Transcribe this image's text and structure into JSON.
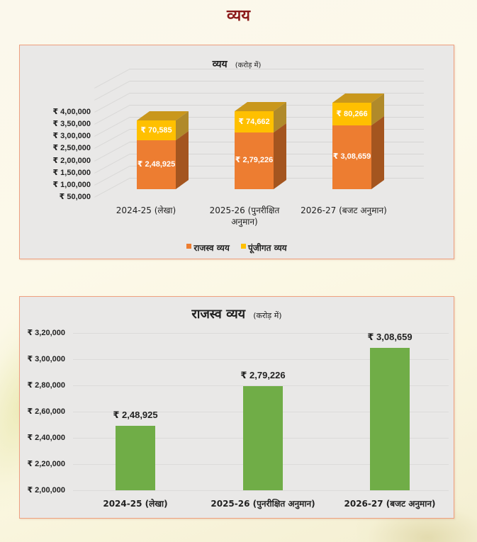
{
  "page": {
    "title": "व्यय"
  },
  "colors": {
    "title": "#8b1a1a",
    "revenue_expenditure": "#ed7d31",
    "capital_expenditure": "#ffc000",
    "green_bar": "#70ad47",
    "panel_border": "#eea080",
    "panel_bg": "#e9e8e7"
  },
  "chart1": {
    "title_main": "व्यय",
    "title_unit": "(करोड़ में)",
    "y_ticks": [
      "₹ 4,00,000",
      "₹ 3,50,000",
      "₹ 3,00,000",
      "₹ 2,50,000",
      "₹ 2,00,000",
      "₹ 1,50,000",
      "₹ 1,00,000",
      "₹ 50,000"
    ],
    "categories": [
      {
        "line1": "2024-25 (लेखा)",
        "line2": ""
      },
      {
        "line1": "2025-26 (पुनरीक्षित",
        "line2": "अनुमान)"
      },
      {
        "line1": "2026-27 (बजट अनुमान)",
        "line2": ""
      }
    ],
    "bars": [
      {
        "revenue_label": "₹ 2,48,925",
        "capital_label": "₹ 70,585"
      },
      {
        "revenue_label": "₹ 2,79,226",
        "capital_label": "₹ 74,662"
      },
      {
        "revenue_label": "₹ 3,08,659",
        "capital_label": "₹ 80,266"
      }
    ],
    "legend": [
      {
        "label": "राजस्व व्यय",
        "color": "#ed7d31"
      },
      {
        "label": "पूंजीगत व्यय",
        "color": "#ffc000"
      }
    ]
  },
  "chart2": {
    "title_main": "राजस्व व्यय",
    "title_unit": "(करोड़ में)",
    "y_ticks": [
      "₹ 3,20,000",
      "₹ 3,00,000",
      "₹ 2,80,000",
      "₹ 2,60,000",
      "₹ 2,40,000",
      "₹ 2,20,000",
      "₹ 2,00,000"
    ],
    "categories": [
      "2024-25 (लेखा)",
      "2025-26 (पुनरीक्षित अनुमान)",
      "2026-27 (बजट अनुमान)"
    ],
    "bar_labels": [
      "₹ 2,48,925",
      "₹ 2,79,226",
      "₹ 3,08,659"
    ]
  },
  "chart_data": [
    {
      "type": "bar",
      "subtype": "stacked-3d",
      "title": "व्यय (करोड़ में)",
      "xlabel": "",
      "ylabel": "",
      "categories": [
        "2024-25 (लेखा)",
        "2025-26 (पुनरीक्षित अनुमान)",
        "2026-27 (बजट अनुमान)"
      ],
      "series": [
        {
          "name": "राजस्व व्यय",
          "color": "#ed7d31",
          "values": [
            248925,
            279226,
            308659
          ]
        },
        {
          "name": "पूंजीगत व्यय",
          "color": "#ffc000",
          "values": [
            70585,
            74662,
            80266
          ]
        }
      ],
      "y_tick_labels": [
        "₹ 50,000",
        "₹ 1,00,000",
        "₹ 1,50,000",
        "₹ 2,00,000",
        "₹ 2,50,000",
        "₹ 3,00,000",
        "₹ 3,50,000",
        "₹ 4,00,000"
      ],
      "ylim": [
        50000,
        400000
      ],
      "grid": true,
      "legend_position": "bottom"
    },
    {
      "type": "bar",
      "title": "राजस्व व्यय (करोड़ में)",
      "xlabel": "",
      "ylabel": "",
      "categories": [
        "2024-25 (लेखा)",
        "2025-26 (पुनरीक्षित अनुमान)",
        "2026-27 (बजट अनुमान)"
      ],
      "values": [
        248925,
        279226,
        308659
      ],
      "data_labels": [
        "₹ 2,48,925",
        "₹ 2,79,226",
        "₹ 3,08,659"
      ],
      "color": "#70ad47",
      "y_tick_labels": [
        "₹ 2,00,000",
        "₹ 2,20,000",
        "₹ 2,40,000",
        "₹ 2,60,000",
        "₹ 2,80,000",
        "₹ 3,00,000",
        "₹ 3,20,000"
      ],
      "ylim": [
        200000,
        320000
      ],
      "grid": true,
      "legend_position": "none"
    }
  ]
}
